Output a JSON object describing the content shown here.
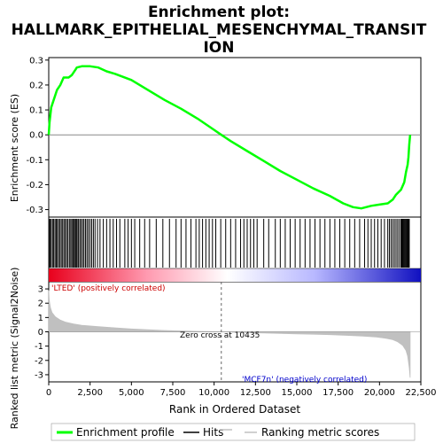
{
  "chart_data": {
    "type": "line",
    "title_lines": [
      "Enrichment plot:",
      "HALLMARK_EPITHELIAL_MESENCHYMAL_TRANSIT",
      "ION"
    ],
    "xlabel": "Rank in Ordered Dataset",
    "xlim": [
      0,
      22500
    ],
    "x_ticks": [
      0,
      2500,
      5000,
      7500,
      10000,
      12500,
      15000,
      17500,
      20000,
      22500
    ],
    "x_tick_labels": [
      "0",
      "2,500",
      "5,000",
      "7,500",
      "10,000",
      "12,500",
      "15,000",
      "17,500",
      "20,000",
      "22,500"
    ],
    "es_panel": {
      "ylabel": "Enrichment score (ES)",
      "ylim": [
        -0.33,
        0.31
      ],
      "y_ticks": [
        -0.3,
        -0.2,
        -0.1,
        0.0,
        0.1,
        0.2,
        0.3
      ],
      "y_tick_labels": [
        "-0.3",
        "-0.2",
        "-0.1",
        "0.0",
        "0.1",
        "0.2",
        "0.3"
      ],
      "series": [
        {
          "name": "Enrichment profile",
          "color": "#00ff00",
          "x": [
            0,
            50,
            150,
            300,
            500,
            700,
            900,
            1200,
            1400,
            1600,
            1700,
            2000,
            2500,
            3000,
            3500,
            4000,
            5000,
            6000,
            7000,
            8000,
            9000,
            10000,
            10435,
            11000,
            12000,
            13000,
            14000,
            15000,
            16000,
            17000,
            17800,
            18400,
            18900,
            19500,
            20000,
            20500,
            20800,
            21000,
            21300,
            21500,
            21600,
            21700,
            21750,
            21800,
            21850
          ],
          "y": [
            0.0,
            0.05,
            0.11,
            0.14,
            0.18,
            0.2,
            0.23,
            0.23,
            0.24,
            0.26,
            0.27,
            0.275,
            0.275,
            0.27,
            0.255,
            0.245,
            0.22,
            0.18,
            0.14,
            0.105,
            0.065,
            0.02,
            0.0,
            -0.025,
            -0.065,
            -0.105,
            -0.145,
            -0.18,
            -0.215,
            -0.245,
            -0.275,
            -0.29,
            -0.295,
            -0.285,
            -0.28,
            -0.275,
            -0.26,
            -0.24,
            -0.22,
            -0.19,
            -0.15,
            -0.12,
            -0.09,
            -0.04,
            0.0
          ]
        }
      ]
    },
    "hits_panel": {
      "hit_color": "#000000",
      "hit_positions": [
        20,
        80,
        150,
        230,
        300,
        380,
        450,
        520,
        600,
        680,
        760,
        840,
        920,
        1000,
        1080,
        1160,
        1250,
        1330,
        1400,
        1470,
        1540,
        1600,
        1660,
        1720,
        1800,
        1880,
        1960,
        2050,
        2130,
        2220,
        2310,
        2400,
        2500,
        2600,
        2700,
        2800,
        2950,
        3100,
        3300,
        3500,
        3700,
        3900,
        4100,
        4300,
        4600,
        4800,
        5000,
        5200,
        5500,
        5800,
        6100,
        6500,
        6900,
        7300,
        7700,
        8000,
        8300,
        8600,
        8900,
        9100,
        9300,
        9500,
        9700,
        9900,
        10100,
        10400,
        10700,
        11000,
        11300,
        11600,
        11800,
        12000,
        12200,
        12400,
        12600,
        13000,
        13300,
        13700,
        14000,
        14300,
        14600,
        14900,
        15200,
        15500,
        15800,
        16100,
        16400,
        16700,
        17000,
        17300,
        17600,
        17900,
        18200,
        18500,
        18800,
        19100,
        19300,
        19500,
        19700,
        19900,
        20100,
        20300,
        20500,
        20600,
        20700,
        20800,
        20900,
        21000,
        21100,
        21200,
        21300,
        21350,
        21400,
        21450,
        21500,
        21550,
        21600,
        21650,
        21700,
        21750,
        21800
      ],
      "gradient_stops": [
        "#e8001c",
        "#ff9ab0",
        "#ffffff",
        "#b8b8ff",
        "#1010c0"
      ],
      "zero_fraction": 0.48
    },
    "metric_panel": {
      "ylabel": "Ranked list metric (Signal2Noise)",
      "ylim": [
        -3.5,
        3.5
      ],
      "y_ticks": [
        -3,
        -2,
        -1,
        0,
        1,
        2,
        3
      ],
      "y_tick_labels": [
        "-3",
        "-2",
        "-1",
        "0",
        "1",
        "2",
        "3"
      ],
      "fill_color": "#c0c0c0",
      "x": [
        0,
        30,
        100,
        200,
        400,
        700,
        1000,
        1500,
        2000,
        3000,
        4000,
        5000,
        6000,
        7000,
        8000,
        9000,
        10000,
        10435,
        11000,
        12000,
        13000,
        14000,
        15000,
        16000,
        17000,
        18000,
        19000,
        19800,
        20400,
        20800,
        21100,
        21400,
        21600,
        21700,
        21800,
        21850
      ],
      "y": [
        2.9,
        2.2,
        1.7,
        1.35,
        1.05,
        0.82,
        0.68,
        0.55,
        0.46,
        0.36,
        0.28,
        0.2,
        0.14,
        0.09,
        0.06,
        0.03,
        0.01,
        0.0,
        -0.02,
        -0.05,
        -0.08,
        -0.11,
        -0.14,
        -0.17,
        -0.2,
        -0.25,
        -0.3,
        -0.36,
        -0.45,
        -0.55,
        -0.7,
        -0.95,
        -1.3,
        -1.7,
        -2.5,
        -3.2
      ]
    },
    "zero_cross": {
      "x": 10435,
      "label": "Zero cross at 10435"
    },
    "annotations": {
      "positive": {
        "text": "'LTED' (positively correlated)",
        "color": "#cc0000"
      },
      "negative": {
        "text": "'MCF7n' (negatively correlated)",
        "color": "#0000cc"
      }
    },
    "legend": {
      "placement": "bottom",
      "items": [
        {
          "label": "Enrichment profile",
          "color": "#00ff00"
        },
        {
          "label": "Hits",
          "color": "#000000"
        },
        {
          "label": "Ranking metric scores",
          "color": "#c0c0c0"
        }
      ]
    },
    "grid": false
  }
}
